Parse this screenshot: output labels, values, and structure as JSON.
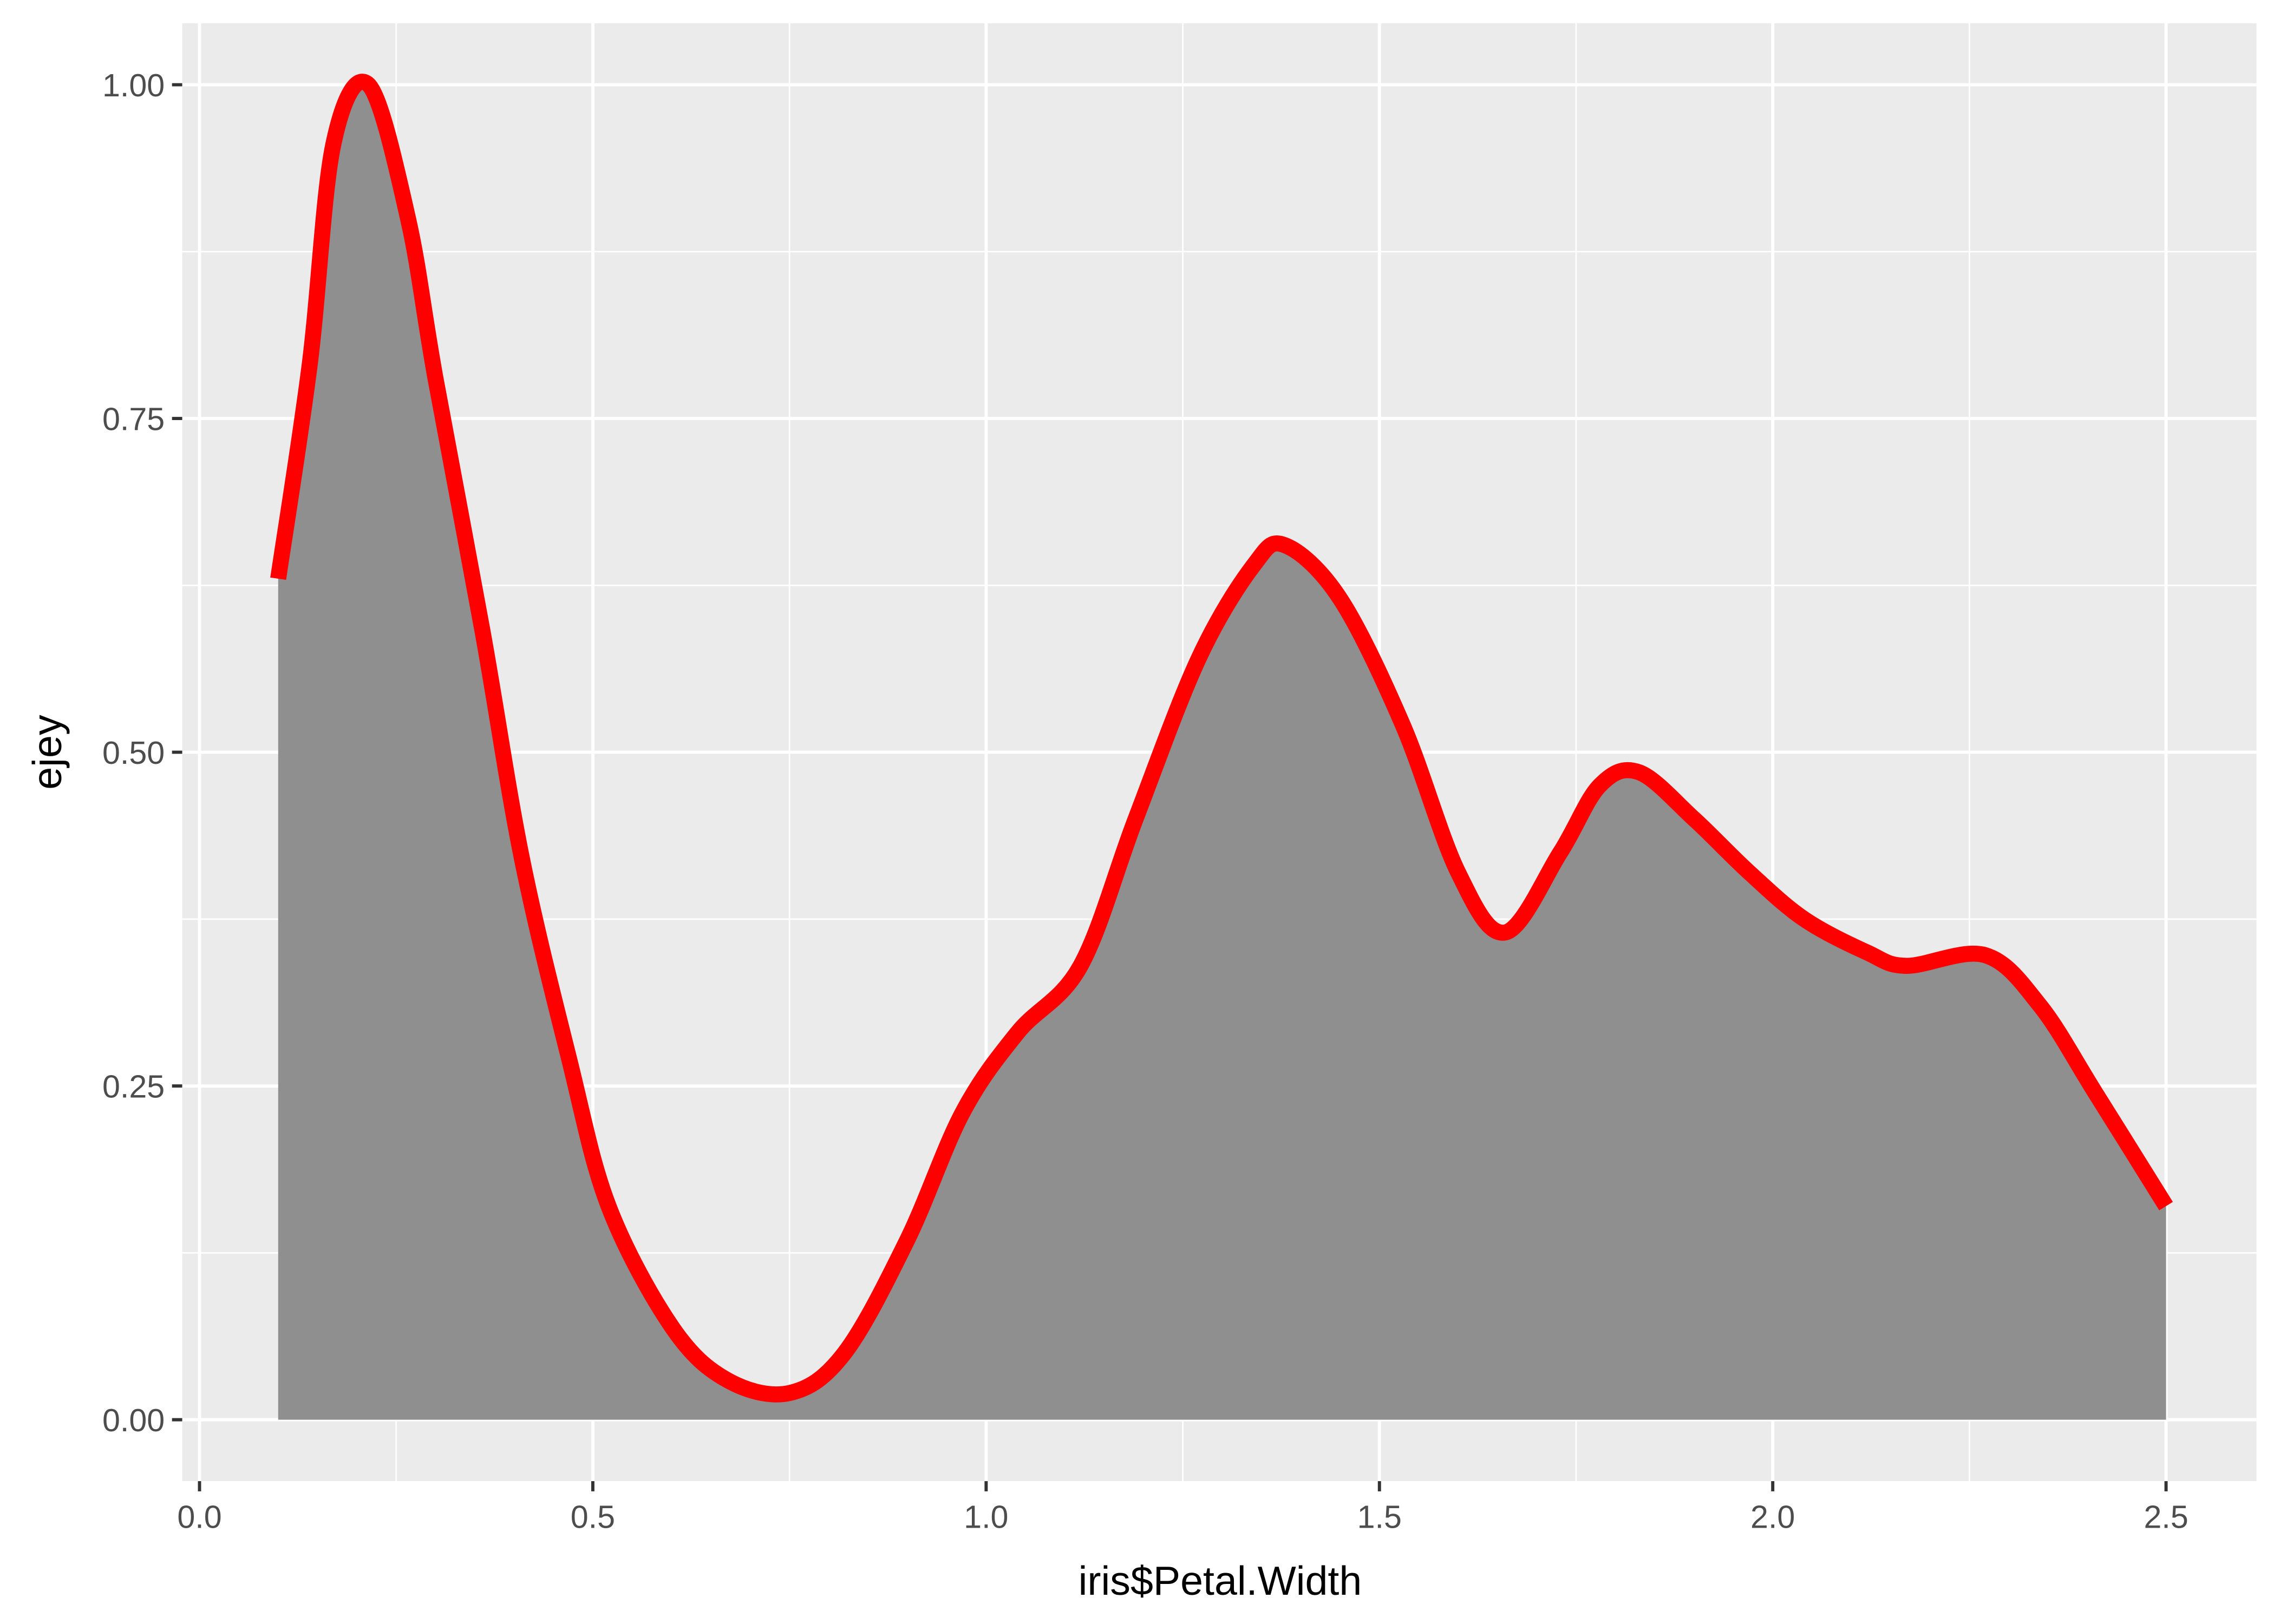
{
  "chart_data": {
    "type": "area",
    "x_label": "iris$Petal.Width",
    "y_label": "ejey",
    "x": [
      0.1,
      0.14,
      0.17,
      0.215,
      0.265,
      0.3,
      0.36,
      0.41,
      0.47,
      0.52,
      0.6,
      0.67,
      0.75,
      0.82,
      0.9,
      0.97,
      1.04,
      1.12,
      1.19,
      1.27,
      1.34,
      1.38,
      1.45,
      1.53,
      1.6,
      1.66,
      1.73,
      1.78,
      1.83,
      1.9,
      1.97,
      2.04,
      2.12,
      2.17,
      2.27,
      2.34,
      2.41,
      2.5
    ],
    "values": [
      0.63,
      0.79,
      0.955,
      1.0,
      0.9,
      0.78,
      0.59,
      0.42,
      0.27,
      0.16,
      0.07,
      0.03,
      0.02,
      0.05,
      0.135,
      0.23,
      0.29,
      0.34,
      0.45,
      0.57,
      0.64,
      0.655,
      0.615,
      0.52,
      0.41,
      0.365,
      0.425,
      0.475,
      0.485,
      0.45,
      0.41,
      0.375,
      0.35,
      0.34,
      0.348,
      0.31,
      0.245,
      0.16
    ],
    "color": "#ff0000",
    "fill": "#8f8f8f",
    "xlim": [
      -0.022,
      2.615
    ],
    "ylim": [
      -0.046,
      1.046
    ],
    "xticks": [
      {
        "value": 0,
        "label": "0.0"
      },
      {
        "value": 0.5,
        "label": "0.5"
      },
      {
        "value": 1,
        "label": "1.0"
      },
      {
        "value": 1.5,
        "label": "1.5"
      },
      {
        "value": 2,
        "label": "2.0"
      },
      {
        "value": 2.5,
        "label": "2.5"
      }
    ],
    "yticks": [
      {
        "value": 0,
        "label": "0.00"
      },
      {
        "value": 0.25,
        "label": "0.25"
      },
      {
        "value": 0.5,
        "label": "0.50"
      },
      {
        "value": 0.75,
        "label": "0.75"
      },
      {
        "value": 1,
        "label": "1.00"
      }
    ],
    "grid": true
  }
}
